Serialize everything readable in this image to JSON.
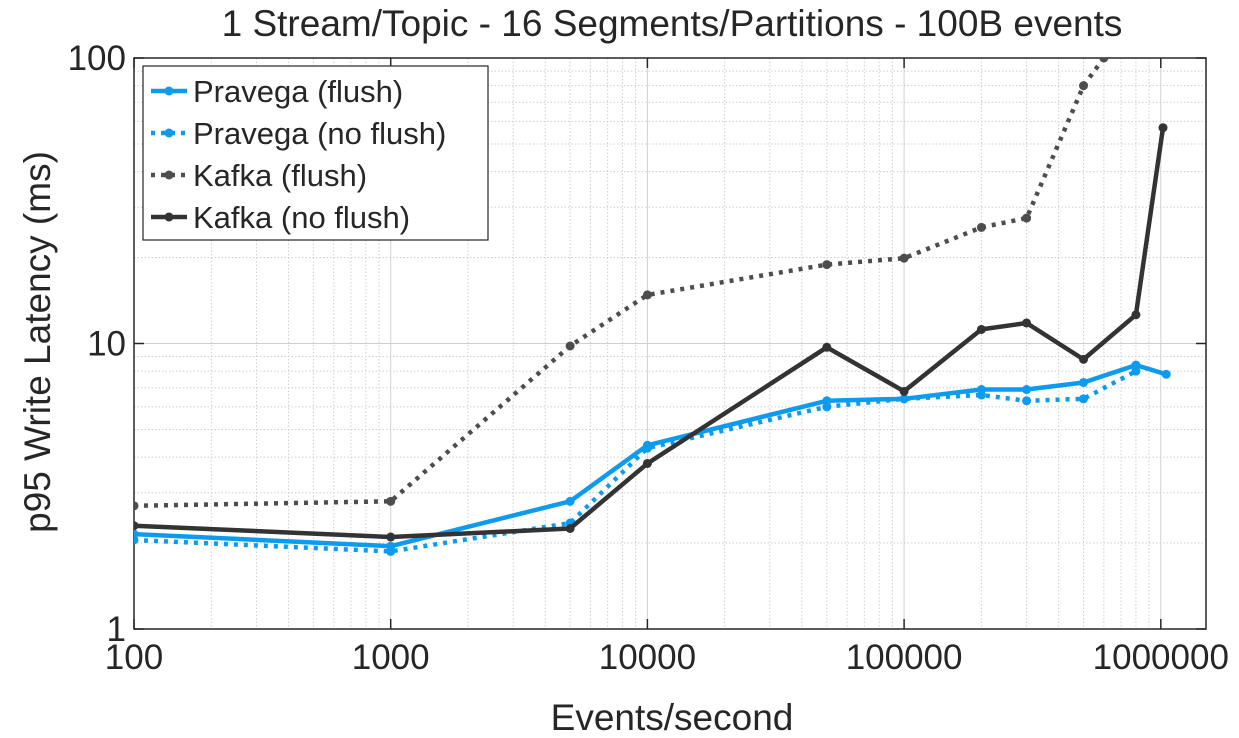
{
  "chart_data": {
    "type": "line",
    "title": "1 Stream/Topic - 16 Segments/Partitions - 100B events",
    "xlabel": "Events/second",
    "ylabel": "p95 Write Latency (ms)",
    "xscale": "log",
    "yscale": "log",
    "xlim": [
      100,
      1500000
    ],
    "ylim": [
      1,
      100
    ],
    "xticks": [
      "100",
      "1000",
      "10000",
      "100000",
      "1000000"
    ],
    "yticks": [
      "1",
      "10",
      "100"
    ],
    "grid": true,
    "legend_position": "top-left",
    "series": [
      {
        "name": "Pravega (flush)",
        "color": "#0d9bf0",
        "style": "solid",
        "x": [
          100,
          1000,
          5000,
          10000,
          50000,
          100000,
          200000,
          300000,
          500000,
          800000,
          1050000
        ],
        "y": [
          2.15,
          1.95,
          2.8,
          4.4,
          6.3,
          6.4,
          6.9,
          6.9,
          7.3,
          8.4,
          7.8
        ]
      },
      {
        "name": "Pravega (no flush)",
        "color": "#0d9bf0",
        "style": "dotted",
        "x": [
          100,
          1000,
          5000,
          10000,
          50000,
          100000,
          200000,
          300000,
          500000,
          800000
        ],
        "y": [
          2.05,
          1.87,
          2.35,
          4.3,
          6.0,
          6.4,
          6.6,
          6.3,
          6.4,
          8.0
        ]
      },
      {
        "name": "Kafka (flush)",
        "color": "#4d4d4d",
        "style": "dotted",
        "x": [
          100,
          1000,
          5000,
          10000,
          50000,
          100000,
          200000,
          300000,
          500000,
          600000
        ],
        "y": [
          2.7,
          2.8,
          9.8,
          14.8,
          18.9,
          19.9,
          25.5,
          27.5,
          80,
          100
        ]
      },
      {
        "name": "Kafka (no flush)",
        "color": "#333333",
        "style": "solid",
        "x": [
          100,
          1000,
          5000,
          10000,
          50000,
          100000,
          200000,
          300000,
          500000,
          800000,
          1020000
        ],
        "y": [
          2.3,
          2.1,
          2.25,
          3.8,
          9.7,
          6.8,
          11.2,
          11.8,
          8.8,
          12.6,
          57
        ]
      }
    ]
  }
}
